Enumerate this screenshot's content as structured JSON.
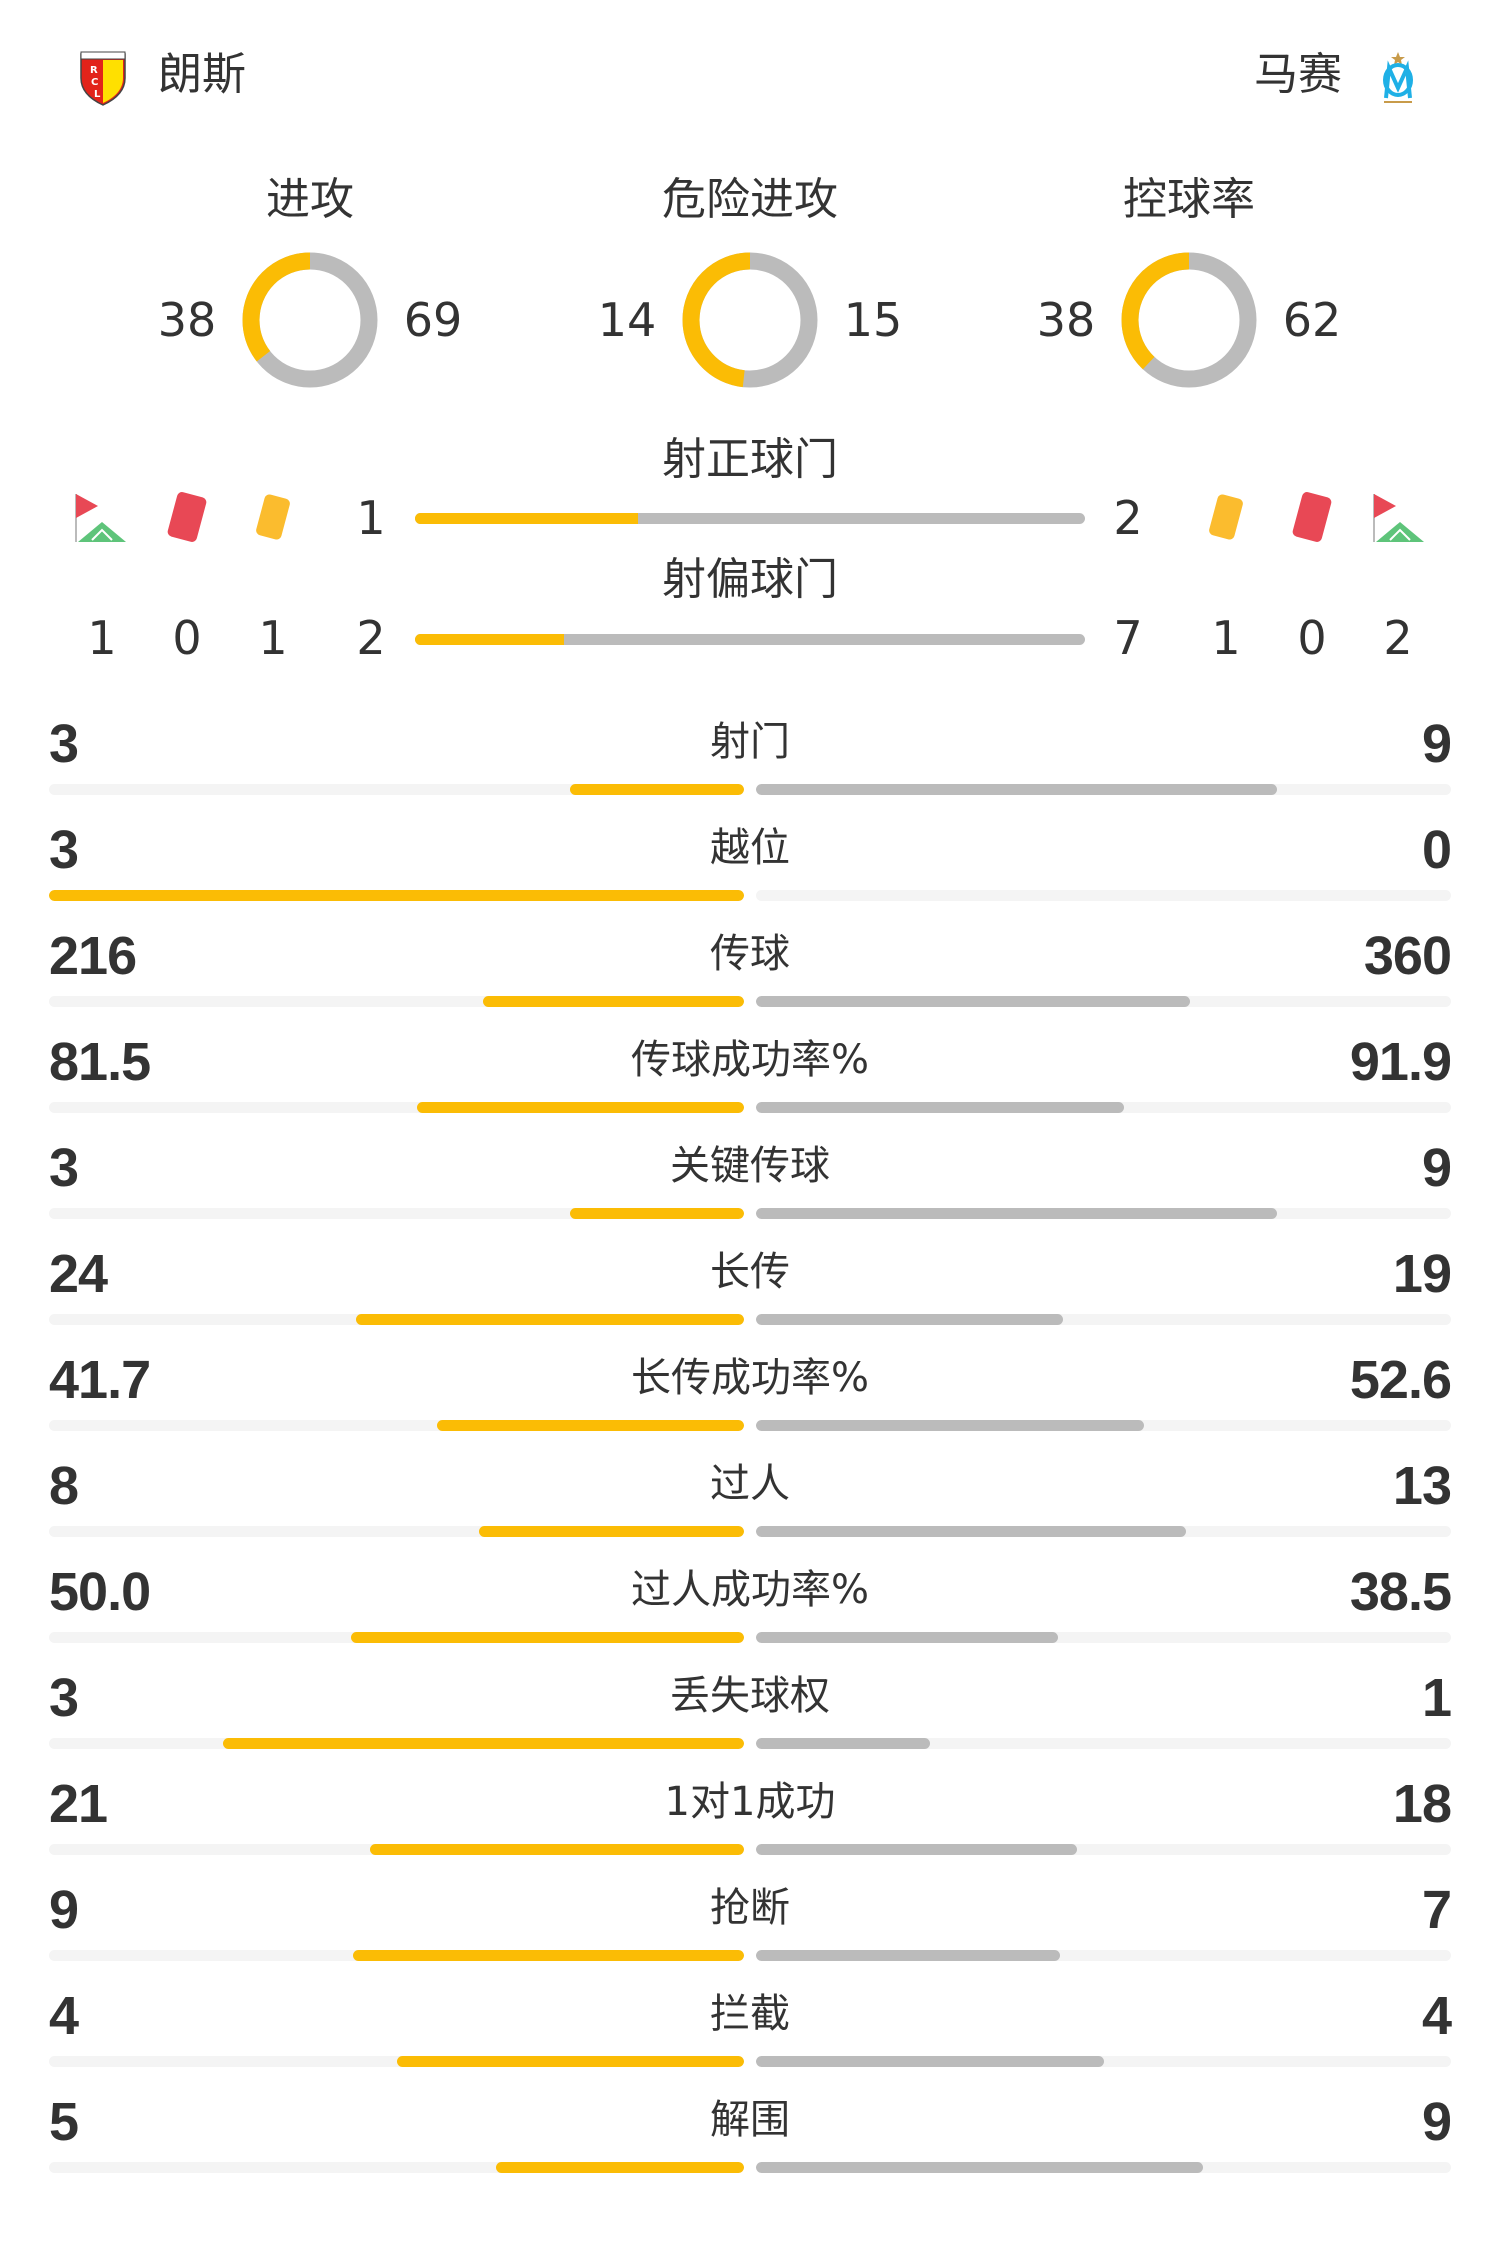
{
  "header": {
    "home": {
      "name": "朗斯",
      "logo_text": "RCL"
    },
    "away": {
      "name": "马赛",
      "logo_text": "OM"
    }
  },
  "colors": {
    "home": "#FBBC05",
    "away": "#BBBBBB",
    "track": "#F4F4F4",
    "text": "#333333"
  },
  "donuts": [
    {
      "title": "进攻",
      "home": 38,
      "away": 69
    },
    {
      "title": "危险进攻",
      "home": 14,
      "away": 15
    },
    {
      "title": "控球率",
      "home": 38,
      "away": 62
    }
  ],
  "shots_on": {
    "title": "射正球门",
    "home": 1,
    "away": 2
  },
  "shots_off": {
    "title": "射偏球门",
    "home": 2,
    "away": 7
  },
  "events": {
    "icons": [
      "corner-flag-icon",
      "red-card-icon",
      "yellow-card-icon"
    ],
    "home": {
      "corners": 1,
      "red_cards": 0,
      "yellow_cards": 1
    },
    "away": {
      "corners": 2,
      "red_cards": 0,
      "yellow_cards": 1
    }
  },
  "stats": [
    {
      "label": "射门",
      "home": "3",
      "away": "9"
    },
    {
      "label": "越位",
      "home": "3",
      "away": "0"
    },
    {
      "label": "传球",
      "home": "216",
      "away": "360"
    },
    {
      "label": "传球成功率%",
      "home": "81.5",
      "away": "91.9"
    },
    {
      "label": "关键传球",
      "home": "3",
      "away": "9"
    },
    {
      "label": "长传",
      "home": "24",
      "away": "19"
    },
    {
      "label": "长传成功率%",
      "home": "41.7",
      "away": "52.6"
    },
    {
      "label": "过人",
      "home": "8",
      "away": "13"
    },
    {
      "label": "过人成功率%",
      "home": "50.0",
      "away": "38.5"
    },
    {
      "label": "丢失球权",
      "home": "3",
      "away": "1"
    },
    {
      "label": "1对1成功",
      "home": "21",
      "away": "18"
    },
    {
      "label": "抢断",
      "home": "9",
      "away": "7"
    },
    {
      "label": "拦截",
      "home": "4",
      "away": "4"
    },
    {
      "label": "解围",
      "home": "5",
      "away": "9"
    }
  ]
}
